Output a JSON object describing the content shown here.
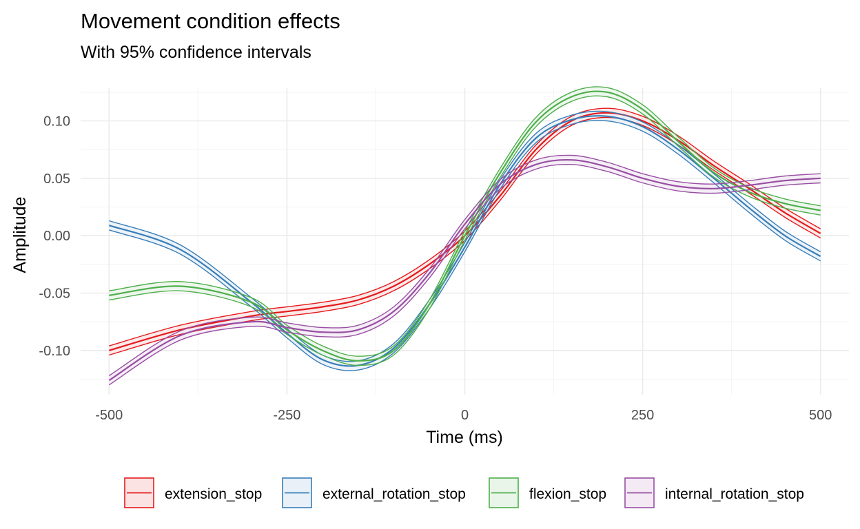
{
  "chart_data": {
    "type": "line",
    "title": "Movement condition effects",
    "subtitle": "With 95% confidence intervals",
    "xlabel": "Time (ms)",
    "ylabel": "Amplitude",
    "xlim": [
      -540,
      540
    ],
    "ylim": [
      -0.1385,
      0.1285
    ],
    "x_ticks": [
      -500,
      -250,
      0,
      250,
      500
    ],
    "x_tick_labels": [
      "-500",
      "-250",
      "0",
      "250",
      "500"
    ],
    "y_ticks": [
      -0.1,
      -0.05,
      0.0,
      0.05,
      0.1
    ],
    "y_tick_labels": [
      "-0.10",
      "-0.05",
      "0.00",
      "0.05",
      "0.10"
    ],
    "grid": true,
    "legend_position": "bottom",
    "x": [
      -500,
      -400,
      -300,
      -250,
      -200,
      -150,
      -100,
      -50,
      0,
      50,
      100,
      150,
      200,
      250,
      300,
      350,
      400,
      450,
      500
    ],
    "series": [
      {
        "name": "extension_stop",
        "color": "#E41A1C",
        "fill": "#FBE3E4",
        "ci": 0.004,
        "values": [
          -0.1,
          -0.082,
          -0.07,
          -0.066,
          -0.062,
          -0.056,
          -0.044,
          -0.025,
          0.0,
          0.035,
          0.075,
          0.1,
          0.107,
          0.1,
          0.083,
          0.061,
          0.041,
          0.02,
          0.002
        ]
      },
      {
        "name": "external_rotation_stop",
        "color": "#377EB8",
        "fill": "#E9F0F8",
        "ci": 0.004,
        "values": [
          0.009,
          -0.012,
          -0.058,
          -0.085,
          -0.108,
          -0.113,
          -0.098,
          -0.06,
          -0.01,
          0.045,
          0.085,
          0.101,
          0.104,
          0.095,
          0.075,
          0.05,
          0.024,
          0.0,
          -0.018
        ]
      },
      {
        "name": "flexion_stop",
        "color": "#4DAF4A",
        "fill": "#EAF5EA",
        "ci": 0.004,
        "values": [
          -0.052,
          -0.044,
          -0.058,
          -0.082,
          -0.1,
          -0.109,
          -0.1,
          -0.06,
          0.0,
          0.055,
          0.099,
          0.121,
          0.125,
          0.11,
          0.082,
          0.055,
          0.038,
          0.028,
          0.022
        ]
      },
      {
        "name": "internal_rotation_stop",
        "color": "#984EA3",
        "fill": "#F3EAF4",
        "ci": 0.004,
        "values": [
          -0.126,
          -0.087,
          -0.075,
          -0.08,
          -0.084,
          -0.082,
          -0.066,
          -0.033,
          0.01,
          0.045,
          0.062,
          0.066,
          0.06,
          0.05,
          0.043,
          0.041,
          0.044,
          0.048,
          0.05
        ]
      }
    ]
  }
}
